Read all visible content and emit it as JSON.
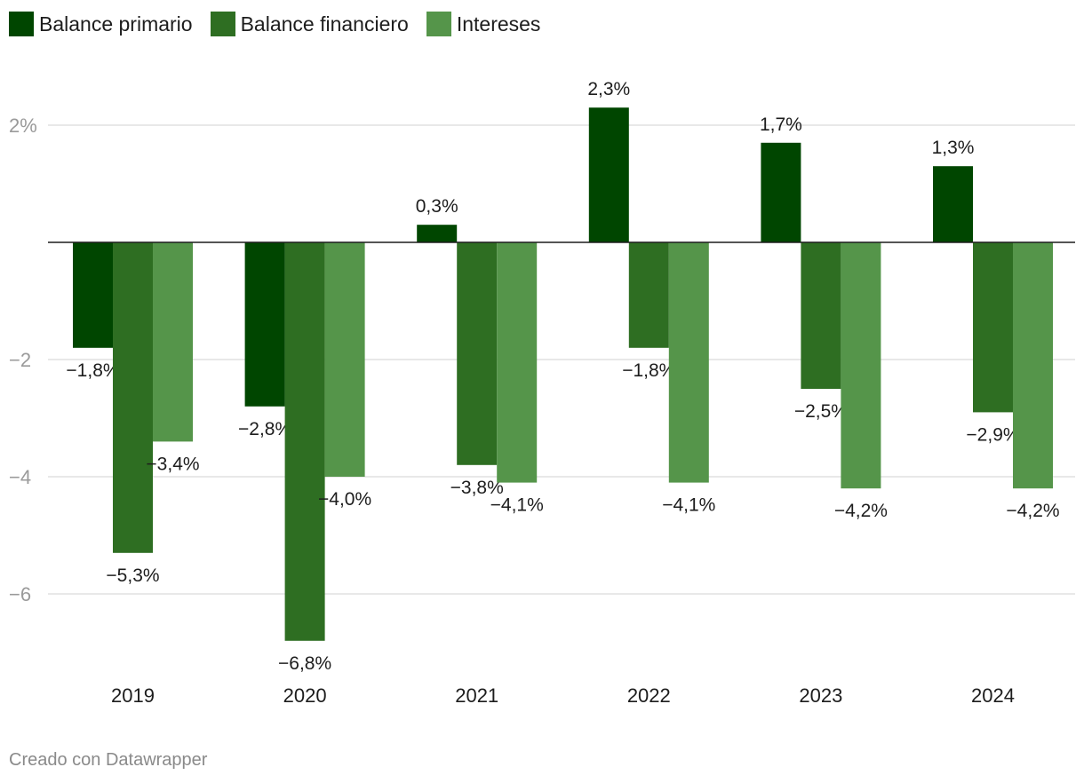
{
  "chart_data": {
    "type": "bar",
    "categories": [
      "2019",
      "2020",
      "2021",
      "2022",
      "2023",
      "2024"
    ],
    "series": [
      {
        "name": "Balance primario",
        "color": "#004600",
        "values": [
          -1.8,
          -2.8,
          0.3,
          2.3,
          1.7,
          1.3
        ],
        "labels": [
          "−1,8%",
          "−2,8%",
          "0,3%",
          "2,3%",
          "1,7%",
          "1,3%"
        ]
      },
      {
        "name": "Balance financiero",
        "color": "#2e6e22",
        "values": [
          -5.3,
          -6.8,
          -3.8,
          -1.8,
          -2.5,
          -2.9
        ],
        "labels": [
          "−5,3%",
          "−6,8%",
          "−3,8%",
          "−1,8%",
          "−2,5%",
          "−2,9%"
        ]
      },
      {
        "name": "Intereses",
        "color": "#55954a",
        "values": [
          -3.4,
          -4.0,
          -4.1,
          -4.1,
          -4.2,
          -4.2
        ],
        "labels": [
          "−3,4%",
          "−4,0%",
          "−4,1%",
          "−4,1%",
          "−4,2%",
          "−4,2%"
        ]
      }
    ],
    "yticks": [
      {
        "value": 2,
        "label": "2%"
      },
      {
        "value": -2,
        "label": "−2"
      },
      {
        "value": -4,
        "label": "−4"
      },
      {
        "value": -6,
        "label": "−6"
      }
    ],
    "ylim": [
      -7.6,
      4.0
    ],
    "grid": true,
    "legend_position": "top-left"
  },
  "footer": {
    "credit": "Creado con Datawrapper"
  }
}
